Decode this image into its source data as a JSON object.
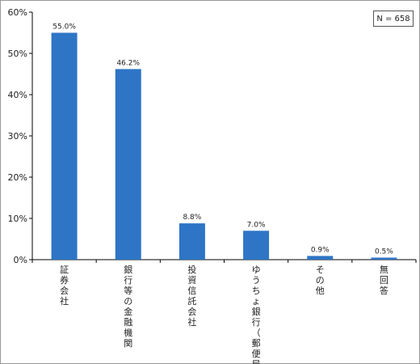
{
  "chart_data": {
    "type": "bar",
    "categories": [
      "証券会社",
      "銀行等の金融機関",
      "投資信託会社",
      "ゆうちょ銀行（郵便局）",
      "その他",
      "無回答"
    ],
    "values": [
      55.0,
      46.2,
      8.8,
      7.0,
      0.9,
      0.5
    ],
    "value_labels": [
      "55.0%",
      "46.2%",
      "8.8%",
      "7.0%",
      "0.9%",
      "0.5%"
    ],
    "yticks": [
      "0%",
      "10%",
      "20%",
      "30%",
      "40%",
      "50%",
      "60%"
    ],
    "ylim": [
      0,
      60
    ],
    "title": "",
    "xlabel": "",
    "ylabel": "",
    "grid": false,
    "legend": "none",
    "bar_color": "#2E75C6",
    "annotation": "N = 658"
  }
}
